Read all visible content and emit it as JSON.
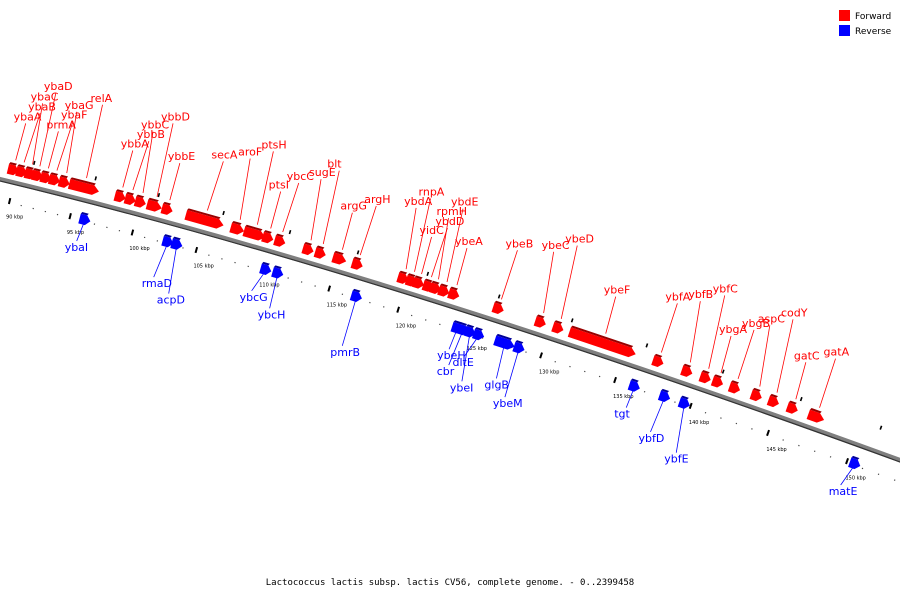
{
  "legend": {
    "forward": {
      "label": "Forward",
      "color": "#ff0000"
    },
    "reverse": {
      "label": "Reverse",
      "color": "#0000ff"
    }
  },
  "caption": "Lactococcus lactis subsp. lactis CV56, complete genome. - 0..2399458",
  "kbp_ticks": [
    "90 kbp",
    "95 kbp",
    "100 kbp",
    "105 kbp",
    "110 kbp",
    "115 kbp",
    "120 kbp",
    "125 kbp",
    "130 kbp",
    "135 kbp",
    "140 kbp",
    "145 kbp",
    "150 kbp"
  ],
  "kbp_tick_values": [
    90,
    95,
    100,
    105,
    110,
    115,
    120,
    125,
    130,
    135,
    140,
    145,
    150
  ],
  "genes": [
    {
      "name": "ybaA",
      "strand": "forward",
      "kbp": 89.7
    },
    {
      "name": "ybaB",
      "strand": "forward",
      "kbp": 90.4
    },
    {
      "name": "ybaC",
      "strand": "forward",
      "kbp": 91.1
    },
    {
      "name": "ybaD",
      "strand": "forward",
      "kbp": 91.7
    },
    {
      "name": "prmA",
      "strand": "forward",
      "kbp": 92.4
    },
    {
      "name": "ybaF",
      "strand": "forward",
      "kbp": 93.1
    },
    {
      "name": "ybaG",
      "strand": "forward",
      "kbp": 93.9
    },
    {
      "name": "relA",
      "strand": "forward",
      "kbp": 95.5
    },
    {
      "name": "ybaI",
      "strand": "reverse",
      "kbp": 96.2
    },
    {
      "name": "ybbA",
      "strand": "forward",
      "kbp": 98.4
    },
    {
      "name": "ybbB",
      "strand": "forward",
      "kbp": 99.2
    },
    {
      "name": "ybbC",
      "strand": "forward",
      "kbp": 100.0
    },
    {
      "name": "ybbD",
      "strand": "forward",
      "kbp": 101.1
    },
    {
      "name": "ybbE",
      "strand": "forward",
      "kbp": 102.1
    },
    {
      "name": "rmaD",
      "strand": "reverse",
      "kbp": 102.8
    },
    {
      "name": "acpD",
      "strand": "reverse",
      "kbp": 103.5
    },
    {
      "name": "secA",
      "strand": "forward",
      "kbp": 105.0
    },
    {
      "name": "aroF",
      "strand": "forward",
      "kbp": 107.5
    },
    {
      "name": "ptsH",
      "strand": "forward",
      "kbp": 108.8
    },
    {
      "name": "ptsI",
      "strand": "forward",
      "kbp": 109.8
    },
    {
      "name": "ybcG",
      "strand": "reverse",
      "kbp": 110.3
    },
    {
      "name": "ybcC",
      "strand": "forward",
      "kbp": 110.7
    },
    {
      "name": "ybcH",
      "strand": "reverse",
      "kbp": 111.2
    },
    {
      "name": "sugE",
      "strand": "forward",
      "kbp": 112.8
    },
    {
      "name": "blt",
      "strand": "forward",
      "kbp": 113.7
    },
    {
      "name": "argG",
      "strand": "forward",
      "kbp": 115.1
    },
    {
      "name": "argH",
      "strand": "forward",
      "kbp": 116.4
    },
    {
      "name": "pmrB",
      "strand": "reverse",
      "kbp": 117.0
    },
    {
      "name": "ybdA",
      "strand": "forward",
      "kbp": 119.7
    },
    {
      "name": "rnpA",
      "strand": "forward",
      "kbp": 120.3
    },
    {
      "name": "yidC",
      "strand": "forward",
      "kbp": 120.8
    },
    {
      "name": "ybdD",
      "strand": "forward",
      "kbp": 121.5
    },
    {
      "name": "rpmH",
      "strand": "forward",
      "kbp": 122.0
    },
    {
      "name": "ybdE",
      "strand": "forward",
      "kbp": 122.6
    },
    {
      "name": "ybeA",
      "strand": "forward",
      "kbp": 123.3
    },
    {
      "name": "ybeH",
      "strand": "reverse",
      "kbp": 124.2
    },
    {
      "name": "cbr",
      "strand": "reverse",
      "kbp": 124.6
    },
    {
      "name": "ybeI",
      "strand": "reverse",
      "kbp": 125.1
    },
    {
      "name": "dltE",
      "strand": "reverse",
      "kbp": 125.7
    },
    {
      "name": "ybeB",
      "strand": "forward",
      "kbp": 126.4
    },
    {
      "name": "glgB",
      "strand": "reverse",
      "kbp": 127.5
    },
    {
      "name": "ybeM",
      "strand": "reverse",
      "kbp": 128.5
    },
    {
      "name": "ybeC",
      "strand": "forward",
      "kbp": 129.3
    },
    {
      "name": "ybeD",
      "strand": "forward",
      "kbp": 130.5
    },
    {
      "name": "ybeF",
      "strand": "forward",
      "kbp": 133.5
    },
    {
      "name": "tgt",
      "strand": "reverse",
      "kbp": 136.3
    },
    {
      "name": "ybfA",
      "strand": "forward",
      "kbp": 137.2
    },
    {
      "name": "ybfD",
      "strand": "reverse",
      "kbp": 138.3
    },
    {
      "name": "ybfB",
      "strand": "forward",
      "kbp": 139.1
    },
    {
      "name": "ybfE",
      "strand": "reverse",
      "kbp": 139.6
    },
    {
      "name": "ybfC",
      "strand": "forward",
      "kbp": 140.3
    },
    {
      "name": "ybgA",
      "strand": "forward",
      "kbp": 141.1
    },
    {
      "name": "ybgB",
      "strand": "forward",
      "kbp": 142.2
    },
    {
      "name": "aspC",
      "strand": "forward",
      "kbp": 143.6
    },
    {
      "name": "codY",
      "strand": "forward",
      "kbp": 144.7
    },
    {
      "name": "gatC",
      "strand": "forward",
      "kbp": 145.9
    },
    {
      "name": "gatA",
      "strand": "forward",
      "kbp": 147.4
    },
    {
      "name": "matE",
      "strand": "reverse",
      "kbp": 150.5
    }
  ]
}
